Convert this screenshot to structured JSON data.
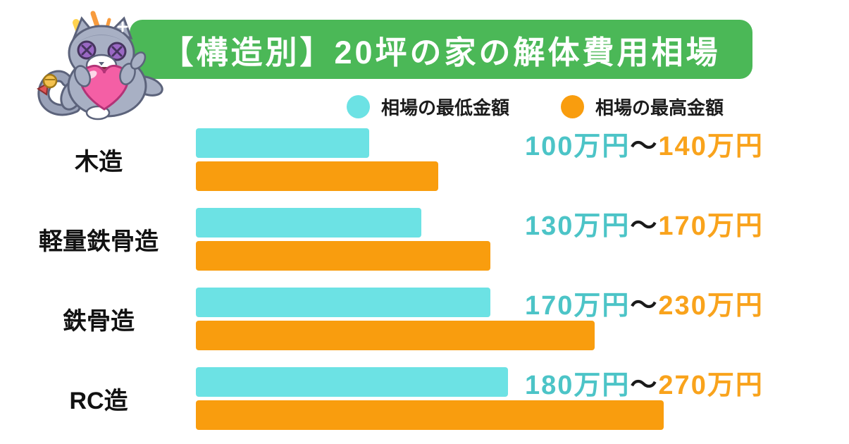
{
  "title": "【構造別】20坪の家の解体費用相場",
  "banner_color": "#4bb857",
  "legend": [
    {
      "label": "相場の最低金額",
      "color": "#6ce2e4"
    },
    {
      "label": "相場の最高金額",
      "color": "#f99d0e"
    }
  ],
  "chart_data": {
    "type": "bar",
    "orientation": "horizontal",
    "title": "【構造別】20坪の家の解体費用相場",
    "unit": "万円",
    "categories": [
      "木造",
      "軽量鉄骨造",
      "鉄骨造",
      "RC造"
    ],
    "series": [
      {
        "name": "相場の最低金額",
        "color": "#6ce2e4",
        "values": [
          100,
          130,
          170,
          180
        ]
      },
      {
        "name": "相場の最高金額",
        "color": "#f99d0e",
        "values": [
          140,
          170,
          230,
          270
        ]
      }
    ],
    "xlim": [
      0,
      270
    ],
    "grid": false,
    "legend_position": "top",
    "value_labels": [
      "100万円～140万円",
      "130万円～170万円",
      "170万円～230万円",
      "180万円～270万円"
    ]
  },
  "rows": [
    {
      "category": "木造",
      "min_value": 100,
      "max_value": 140,
      "min_label": "100万円",
      "tilde": "～",
      "max_label": "140万円"
    },
    {
      "category": "軽量鉄骨造",
      "min_value": 130,
      "max_value": 170,
      "min_label": "130万円",
      "tilde": "～",
      "max_label": "170万円"
    },
    {
      "category": "鉄骨造",
      "min_value": 170,
      "max_value": 230,
      "min_label": "170万円",
      "tilde": "～",
      "max_label": "230万円"
    },
    {
      "category": "RC造",
      "min_value": 180,
      "max_value": 270,
      "min_label": "180万円",
      "tilde": "～",
      "max_label": "270万円"
    }
  ],
  "text_colors": {
    "min_text": "#4cc4c7",
    "max_text": "#f9a31c"
  },
  "mascot": "plush-cat-hugging-heart"
}
